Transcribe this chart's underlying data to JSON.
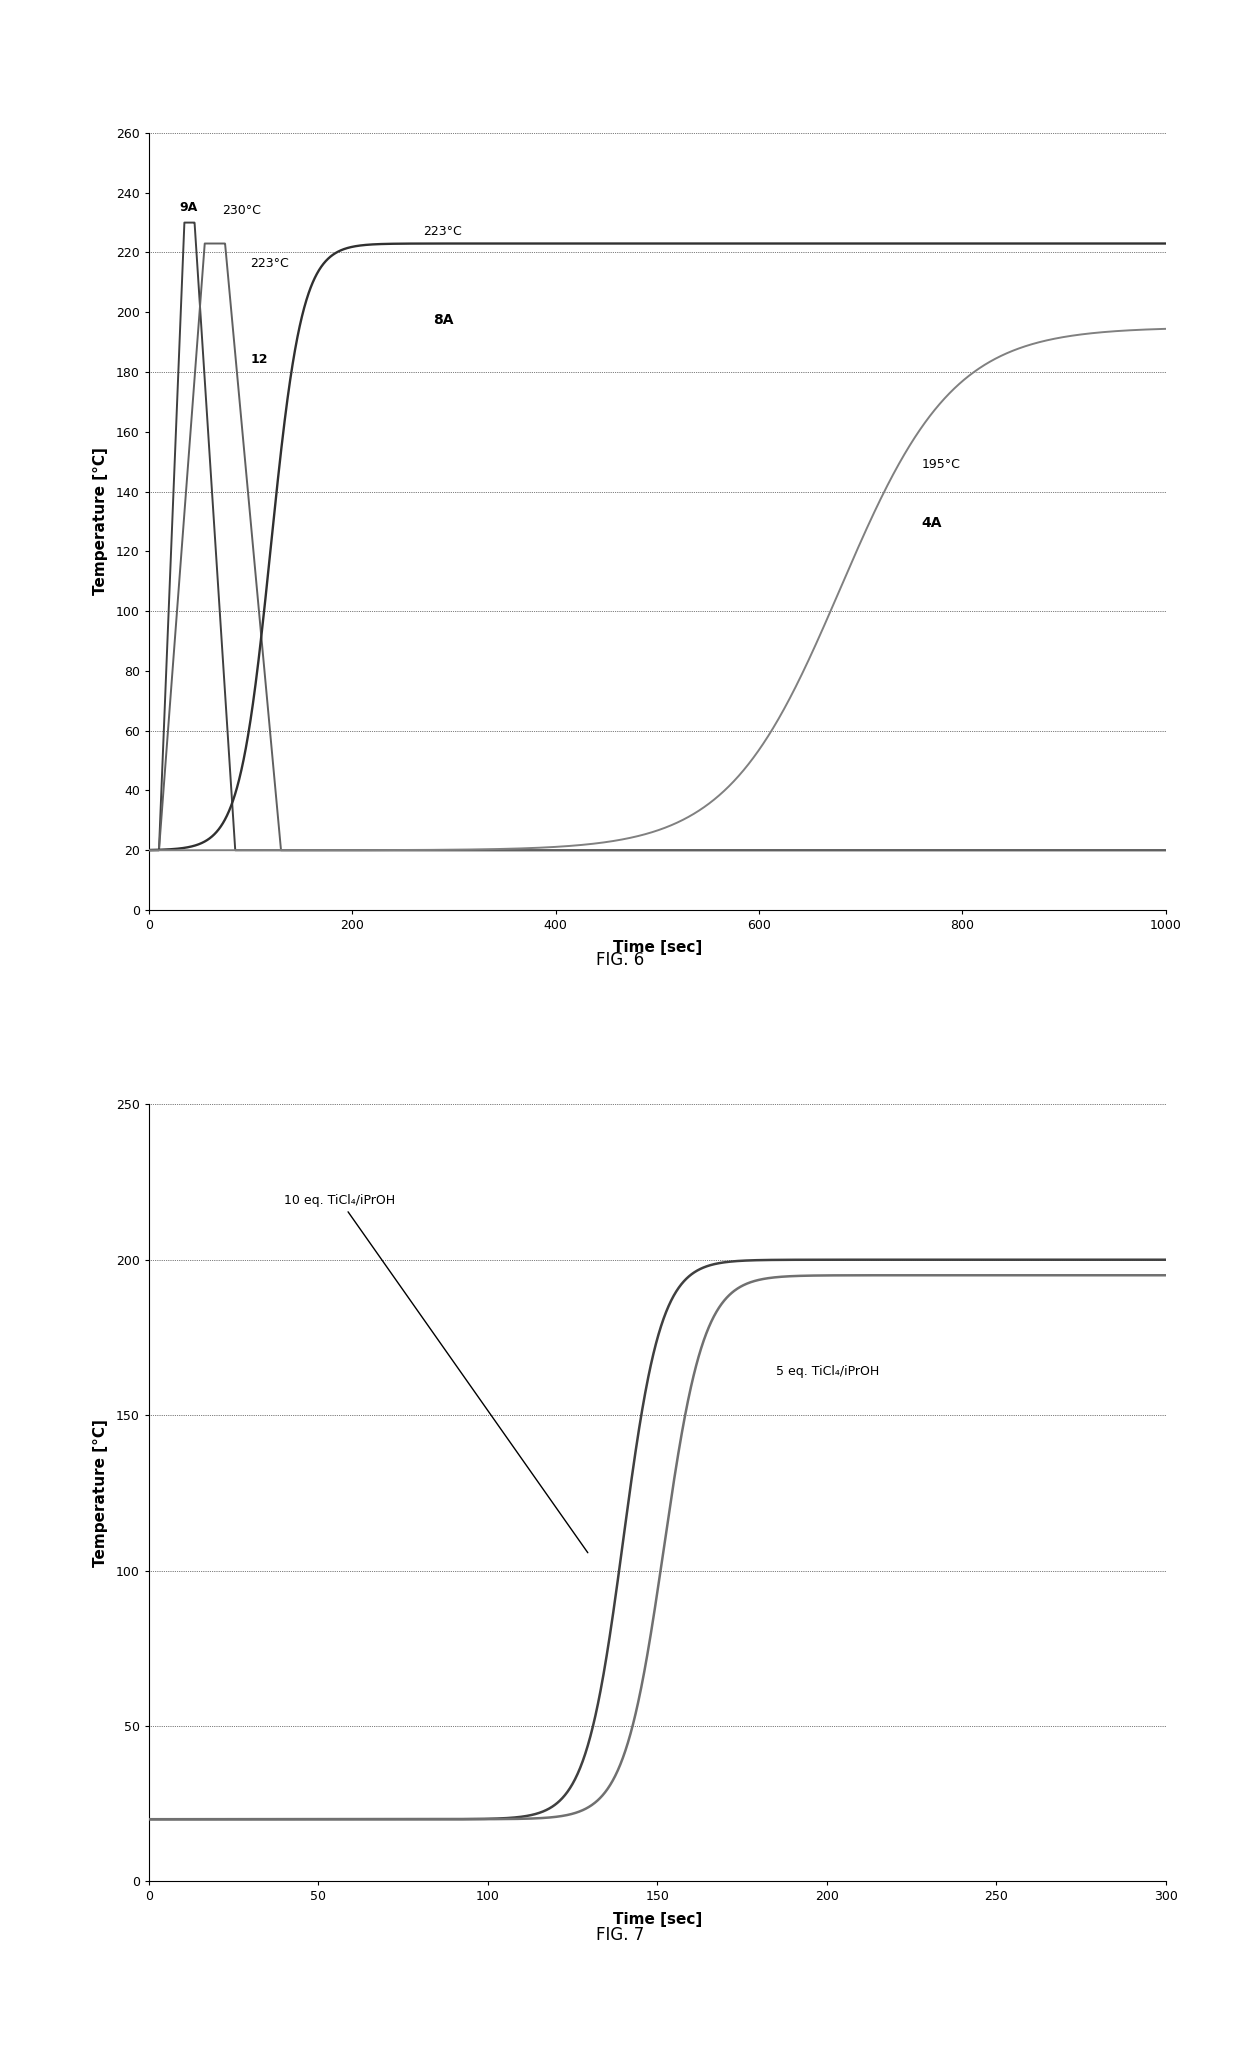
{
  "fig6": {
    "title": "FIG. 6",
    "xlabel": "Time [sec]",
    "ylabel": "Temperature [°C]",
    "xlim": [
      0,
      1000
    ],
    "ylim": [
      0,
      260
    ],
    "xticks": [
      0,
      200,
      400,
      600,
      800,
      1000
    ],
    "yticks": [
      0,
      20,
      40,
      60,
      80,
      100,
      120,
      140,
      160,
      180,
      200,
      220,
      240,
      260
    ],
    "grid_y": [
      20,
      60,
      100,
      140,
      180,
      220,
      260
    ]
  },
  "fig7": {
    "title": "FIG. 7",
    "xlabel": "Time [sec]",
    "ylabel": "Temperature [°C]",
    "xlim": [
      0,
      300
    ],
    "ylim": [
      0,
      250
    ],
    "xticks": [
      0,
      50,
      100,
      150,
      200,
      250,
      300
    ],
    "yticks": [
      0,
      50,
      100,
      150,
      200,
      250
    ],
    "grid_y": [
      50,
      100,
      150,
      200,
      250
    ]
  }
}
